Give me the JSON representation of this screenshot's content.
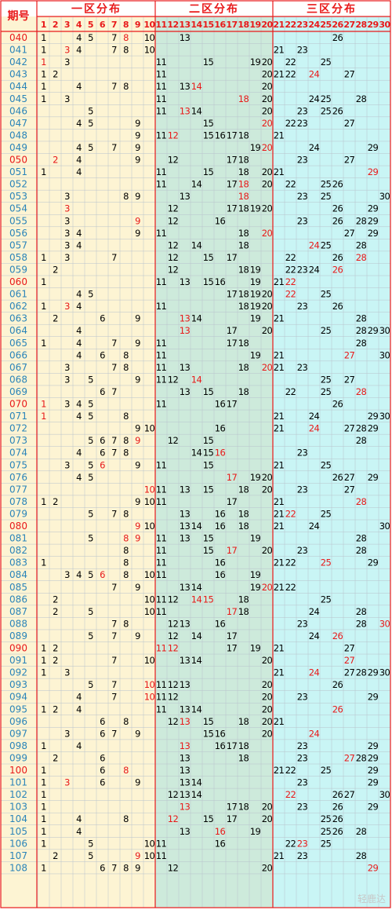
{
  "header": {
    "issue_label": "期号",
    "zone1_title": "一区分布",
    "zone2_title": "二区分布",
    "zone3_title": "三区分布"
  },
  "watermark": "轻鹿达",
  "colors": {
    "border": "#e8191a",
    "issue_normal": "#2a84b9",
    "issue_red": "#e8191a",
    "num_normal": "#000000",
    "num_red": "#e8191a",
    "zone1_bg": "#fdf4d3",
    "zone2_bg": "#cdeadb",
    "zone3_bg": "#c9f5f5",
    "issue_bg": "#fdf4d3"
  },
  "chart_data": {
    "type": "table",
    "columns": [
      "1",
      "2",
      "3",
      "4",
      "5",
      "6",
      "7",
      "8",
      "9",
      "10",
      "11",
      "12",
      "13",
      "14",
      "15",
      "16",
      "17",
      "18",
      "19",
      "20",
      "21",
      "22",
      "23",
      "24",
      "25",
      "26",
      "27",
      "28",
      "29",
      "30"
    ],
    "rows": [
      {
        "issue": "040",
        "issue_red": true,
        "nums": [
          1,
          4,
          5,
          7,
          8,
          10,
          13,
          26
        ],
        "red": [
          8
        ]
      },
      {
        "issue": "041",
        "nums": [
          1,
          3,
          4,
          7,
          8,
          10,
          21,
          23
        ],
        "red": [
          3
        ]
      },
      {
        "issue": "042",
        "nums": [
          1,
          3,
          11,
          15,
          19,
          20,
          22,
          25
        ],
        "red": [
          1
        ]
      },
      {
        "issue": "043",
        "nums": [
          1,
          2,
          11,
          20,
          21,
          22,
          24,
          27
        ],
        "red": [
          24
        ]
      },
      {
        "issue": "044",
        "nums": [
          1,
          4,
          7,
          8,
          11,
          13,
          14,
          20
        ],
        "red": [
          14
        ]
      },
      {
        "issue": "045",
        "nums": [
          1,
          3,
          11,
          18,
          20,
          24,
          25,
          28
        ],
        "red": [
          18
        ]
      },
      {
        "issue": "046",
        "nums": [
          5,
          11,
          13,
          14,
          20,
          23,
          25,
          26
        ],
        "red": [
          13
        ]
      },
      {
        "issue": "047",
        "nums": [
          4,
          5,
          9,
          15,
          20,
          22,
          23,
          27
        ],
        "red": [
          20
        ]
      },
      {
        "issue": "048",
        "nums": [
          9,
          11,
          12,
          15,
          16,
          17,
          18,
          21
        ],
        "red": [
          12
        ]
      },
      {
        "issue": "049",
        "nums": [
          4,
          5,
          7,
          9,
          19,
          20,
          24,
          29
        ],
        "red": [
          20
        ]
      },
      {
        "issue": "050",
        "issue_red": true,
        "nums": [
          2,
          4,
          9,
          12,
          17,
          18,
          23,
          27
        ],
        "red": [
          2
        ]
      },
      {
        "issue": "051",
        "nums": [
          1,
          4,
          11,
          15,
          18,
          20,
          21,
          29
        ],
        "red": [
          29
        ]
      },
      {
        "issue": "052",
        "nums": [
          11,
          14,
          17,
          18,
          20,
          22,
          25,
          26
        ],
        "red": [
          18
        ]
      },
      {
        "issue": "053",
        "nums": [
          3,
          8,
          9,
          13,
          18,
          23,
          25,
          30
        ],
        "red": [
          18
        ]
      },
      {
        "issue": "054",
        "nums": [
          3,
          12,
          17,
          18,
          19,
          20,
          26,
          29
        ],
        "red": [
          3
        ]
      },
      {
        "issue": "055",
        "nums": [
          3,
          9,
          12,
          16,
          23,
          26,
          28,
          29
        ],
        "red": [
          9
        ]
      },
      {
        "issue": "056",
        "nums": [
          3,
          4,
          9,
          11,
          18,
          20,
          27,
          29
        ],
        "red": [
          20
        ]
      },
      {
        "issue": "057",
        "nums": [
          3,
          4,
          12,
          14,
          18,
          24,
          25,
          28
        ],
        "red": [
          24
        ]
      },
      {
        "issue": "058",
        "nums": [
          1,
          3,
          7,
          12,
          15,
          17,
          22,
          26,
          28
        ],
        "red": [
          28
        ]
      },
      {
        "issue": "059",
        "nums": [
          2,
          12,
          18,
          19,
          22,
          23,
          24,
          26
        ],
        "red": [
          26
        ]
      },
      {
        "issue": "060",
        "issue_red": true,
        "nums": [
          1,
          11,
          13,
          15,
          16,
          19,
          21,
          22
        ],
        "red": [
          22
        ]
      },
      {
        "issue": "061",
        "nums": [
          4,
          5,
          17,
          18,
          19,
          20,
          22,
          25
        ],
        "red": [
          22
        ]
      },
      {
        "issue": "062",
        "nums": [
          1,
          3,
          4,
          11,
          18,
          19,
          20,
          23,
          26
        ],
        "red": [
          3
        ]
      },
      {
        "issue": "063",
        "nums": [
          2,
          6,
          9,
          13,
          14,
          19,
          21,
          28
        ],
        "red": [
          13
        ]
      },
      {
        "issue": "064",
        "nums": [
          4,
          13,
          17,
          20,
          25,
          28,
          29,
          30
        ],
        "red": [
          13
        ]
      },
      {
        "issue": "065",
        "nums": [
          1,
          4,
          7,
          9,
          11,
          17,
          18,
          28
        ],
        "red": []
      },
      {
        "issue": "066",
        "nums": [
          4,
          6,
          8,
          11,
          19,
          21,
          27,
          30
        ],
        "red": [
          27
        ]
      },
      {
        "issue": "067",
        "nums": [
          3,
          7,
          8,
          11,
          13,
          18,
          20,
          21,
          23
        ],
        "red": [
          20
        ]
      },
      {
        "issue": "068",
        "nums": [
          3,
          5,
          9,
          11,
          12,
          14,
          25,
          27
        ],
        "red": [
          14
        ]
      },
      {
        "issue": "069",
        "nums": [
          6,
          7,
          13,
          15,
          18,
          22,
          25,
          28
        ],
        "red": [
          28
        ]
      },
      {
        "issue": "070",
        "issue_red": true,
        "nums": [
          1,
          3,
          4,
          5,
          11,
          16,
          17,
          26
        ],
        "red": [
          1
        ]
      },
      {
        "issue": "071",
        "nums": [
          1,
          4,
          5,
          8,
          21,
          24,
          29,
          30
        ],
        "red": [
          1
        ]
      },
      {
        "issue": "072",
        "nums": [
          9,
          10,
          16,
          21,
          24,
          27,
          28,
          29
        ],
        "red": [
          24
        ]
      },
      {
        "issue": "073",
        "nums": [
          5,
          6,
          7,
          8,
          9,
          12,
          15,
          28
        ],
        "red": [
          9
        ]
      },
      {
        "issue": "074",
        "nums": [
          4,
          6,
          7,
          8,
          14,
          15,
          16,
          23
        ],
        "red": [
          16
        ]
      },
      {
        "issue": "075",
        "nums": [
          3,
          5,
          6,
          9,
          11,
          15,
          21,
          25
        ],
        "red": [
          6
        ]
      },
      {
        "issue": "076",
        "nums": [
          4,
          5,
          17,
          19,
          20,
          26,
          27,
          29
        ],
        "red": [
          17
        ]
      },
      {
        "issue": "077",
        "nums": [
          10,
          11,
          13,
          15,
          18,
          20,
          23,
          27
        ],
        "red": [
          10
        ]
      },
      {
        "issue": "078",
        "nums": [
          1,
          2,
          9,
          10,
          11,
          17,
          21,
          28
        ],
        "red": [
          28
        ]
      },
      {
        "issue": "079",
        "nums": [
          5,
          7,
          8,
          13,
          16,
          18,
          21,
          22,
          25
        ],
        "red": [
          22
        ]
      },
      {
        "issue": "080",
        "issue_red": true,
        "nums": [
          9,
          10,
          13,
          14,
          16,
          18,
          21,
          24,
          30
        ],
        "red": [
          9
        ]
      },
      {
        "issue": "081",
        "nums": [
          5,
          8,
          9,
          11,
          13,
          15,
          19,
          28
        ],
        "red": [
          8,
          9
        ]
      },
      {
        "issue": "082",
        "nums": [
          8,
          11,
          15,
          17,
          20,
          23,
          28
        ],
        "red": [
          17
        ]
      },
      {
        "issue": "083",
        "nums": [
          1,
          8,
          11,
          16,
          21,
          22,
          25,
          29
        ],
        "red": [
          25
        ]
      },
      {
        "issue": "084",
        "nums": [
          3,
          4,
          5,
          6,
          8,
          10,
          11,
          16,
          19
        ],
        "red": [
          6
        ]
      },
      {
        "issue": "085",
        "nums": [
          7,
          9,
          13,
          14,
          19,
          20,
          21,
          22
        ],
        "red": [
          20
        ]
      },
      {
        "issue": "086",
        "nums": [
          2,
          10,
          11,
          12,
          14,
          15,
          18,
          25
        ],
        "red": [
          14,
          15
        ]
      },
      {
        "issue": "087",
        "nums": [
          2,
          5,
          10,
          11,
          17,
          18,
          24,
          28
        ],
        "red": [
          17
        ]
      },
      {
        "issue": "088",
        "nums": [
          7,
          8,
          12,
          13,
          16,
          23,
          28,
          30
        ],
        "red": [
          30
        ]
      },
      {
        "issue": "089",
        "nums": [
          5,
          7,
          9,
          12,
          14,
          17,
          24,
          26
        ],
        "red": [
          26
        ]
      },
      {
        "issue": "090",
        "issue_red": true,
        "nums": [
          1,
          2,
          11,
          12,
          17,
          19,
          21,
          27
        ],
        "red": [
          11,
          12
        ]
      },
      {
        "issue": "091",
        "nums": [
          1,
          2,
          7,
          10,
          13,
          14,
          20,
          27
        ],
        "red": [
          27
        ]
      },
      {
        "issue": "092",
        "nums": [
          1,
          3,
          21,
          24,
          27,
          28,
          29,
          30
        ],
        "red": [
          24
        ]
      },
      {
        "issue": "093",
        "nums": [
          5,
          7,
          10,
          11,
          12,
          13,
          20,
          26
        ],
        "red": [
          10
        ]
      },
      {
        "issue": "094",
        "nums": [
          4,
          7,
          10,
          11,
          12,
          20,
          23,
          29
        ],
        "red": [
          10
        ]
      },
      {
        "issue": "095",
        "nums": [
          1,
          2,
          4,
          11,
          13,
          14,
          20,
          26
        ],
        "red": [
          26
        ]
      },
      {
        "issue": "096",
        "nums": [
          6,
          8,
          12,
          13,
          15,
          18,
          20,
          21
        ],
        "red": [
          13
        ]
      },
      {
        "issue": "097",
        "nums": [
          3,
          6,
          7,
          9,
          15,
          16,
          20,
          24
        ],
        "red": [
          24
        ]
      },
      {
        "issue": "098",
        "nums": [
          1,
          4,
          13,
          16,
          17,
          18,
          23,
          29
        ],
        "red": [
          13
        ]
      },
      {
        "issue": "099",
        "nums": [
          2,
          6,
          13,
          18,
          23,
          27,
          28,
          29
        ],
        "red": [
          27
        ]
      },
      {
        "issue": "100",
        "issue_red": true,
        "nums": [
          1,
          6,
          8,
          13,
          21,
          22,
          25,
          29
        ],
        "red": [
          8
        ]
      },
      {
        "issue": "101",
        "nums": [
          1,
          3,
          6,
          9,
          13,
          14,
          23,
          29
        ],
        "red": [
          3
        ]
      },
      {
        "issue": "102",
        "nums": [
          1,
          12,
          13,
          14,
          22,
          26,
          27,
          30
        ],
        "red": [
          22
        ]
      },
      {
        "issue": "103",
        "nums": [
          1,
          13,
          17,
          18,
          20,
          23,
          26,
          29
        ],
        "red": [
          13
        ]
      },
      {
        "issue": "104",
        "nums": [
          1,
          4,
          8,
          12,
          15,
          17,
          20,
          25,
          26
        ],
        "red": [
          12
        ]
      },
      {
        "issue": "105",
        "nums": [
          1,
          4,
          13,
          16,
          19,
          25,
          26,
          28
        ],
        "red": [
          16
        ]
      },
      {
        "issue": "106",
        "nums": [
          1,
          5,
          10,
          11,
          16,
          22,
          23,
          25
        ],
        "red": [
          23
        ]
      },
      {
        "issue": "107",
        "nums": [
          2,
          5,
          9,
          10,
          11,
          21,
          23,
          28
        ],
        "red": [
          9
        ]
      },
      {
        "issue": "108",
        "nums": [
          1,
          6,
          7,
          8,
          9,
          12,
          20,
          29
        ],
        "red": [
          29
        ]
      }
    ]
  }
}
